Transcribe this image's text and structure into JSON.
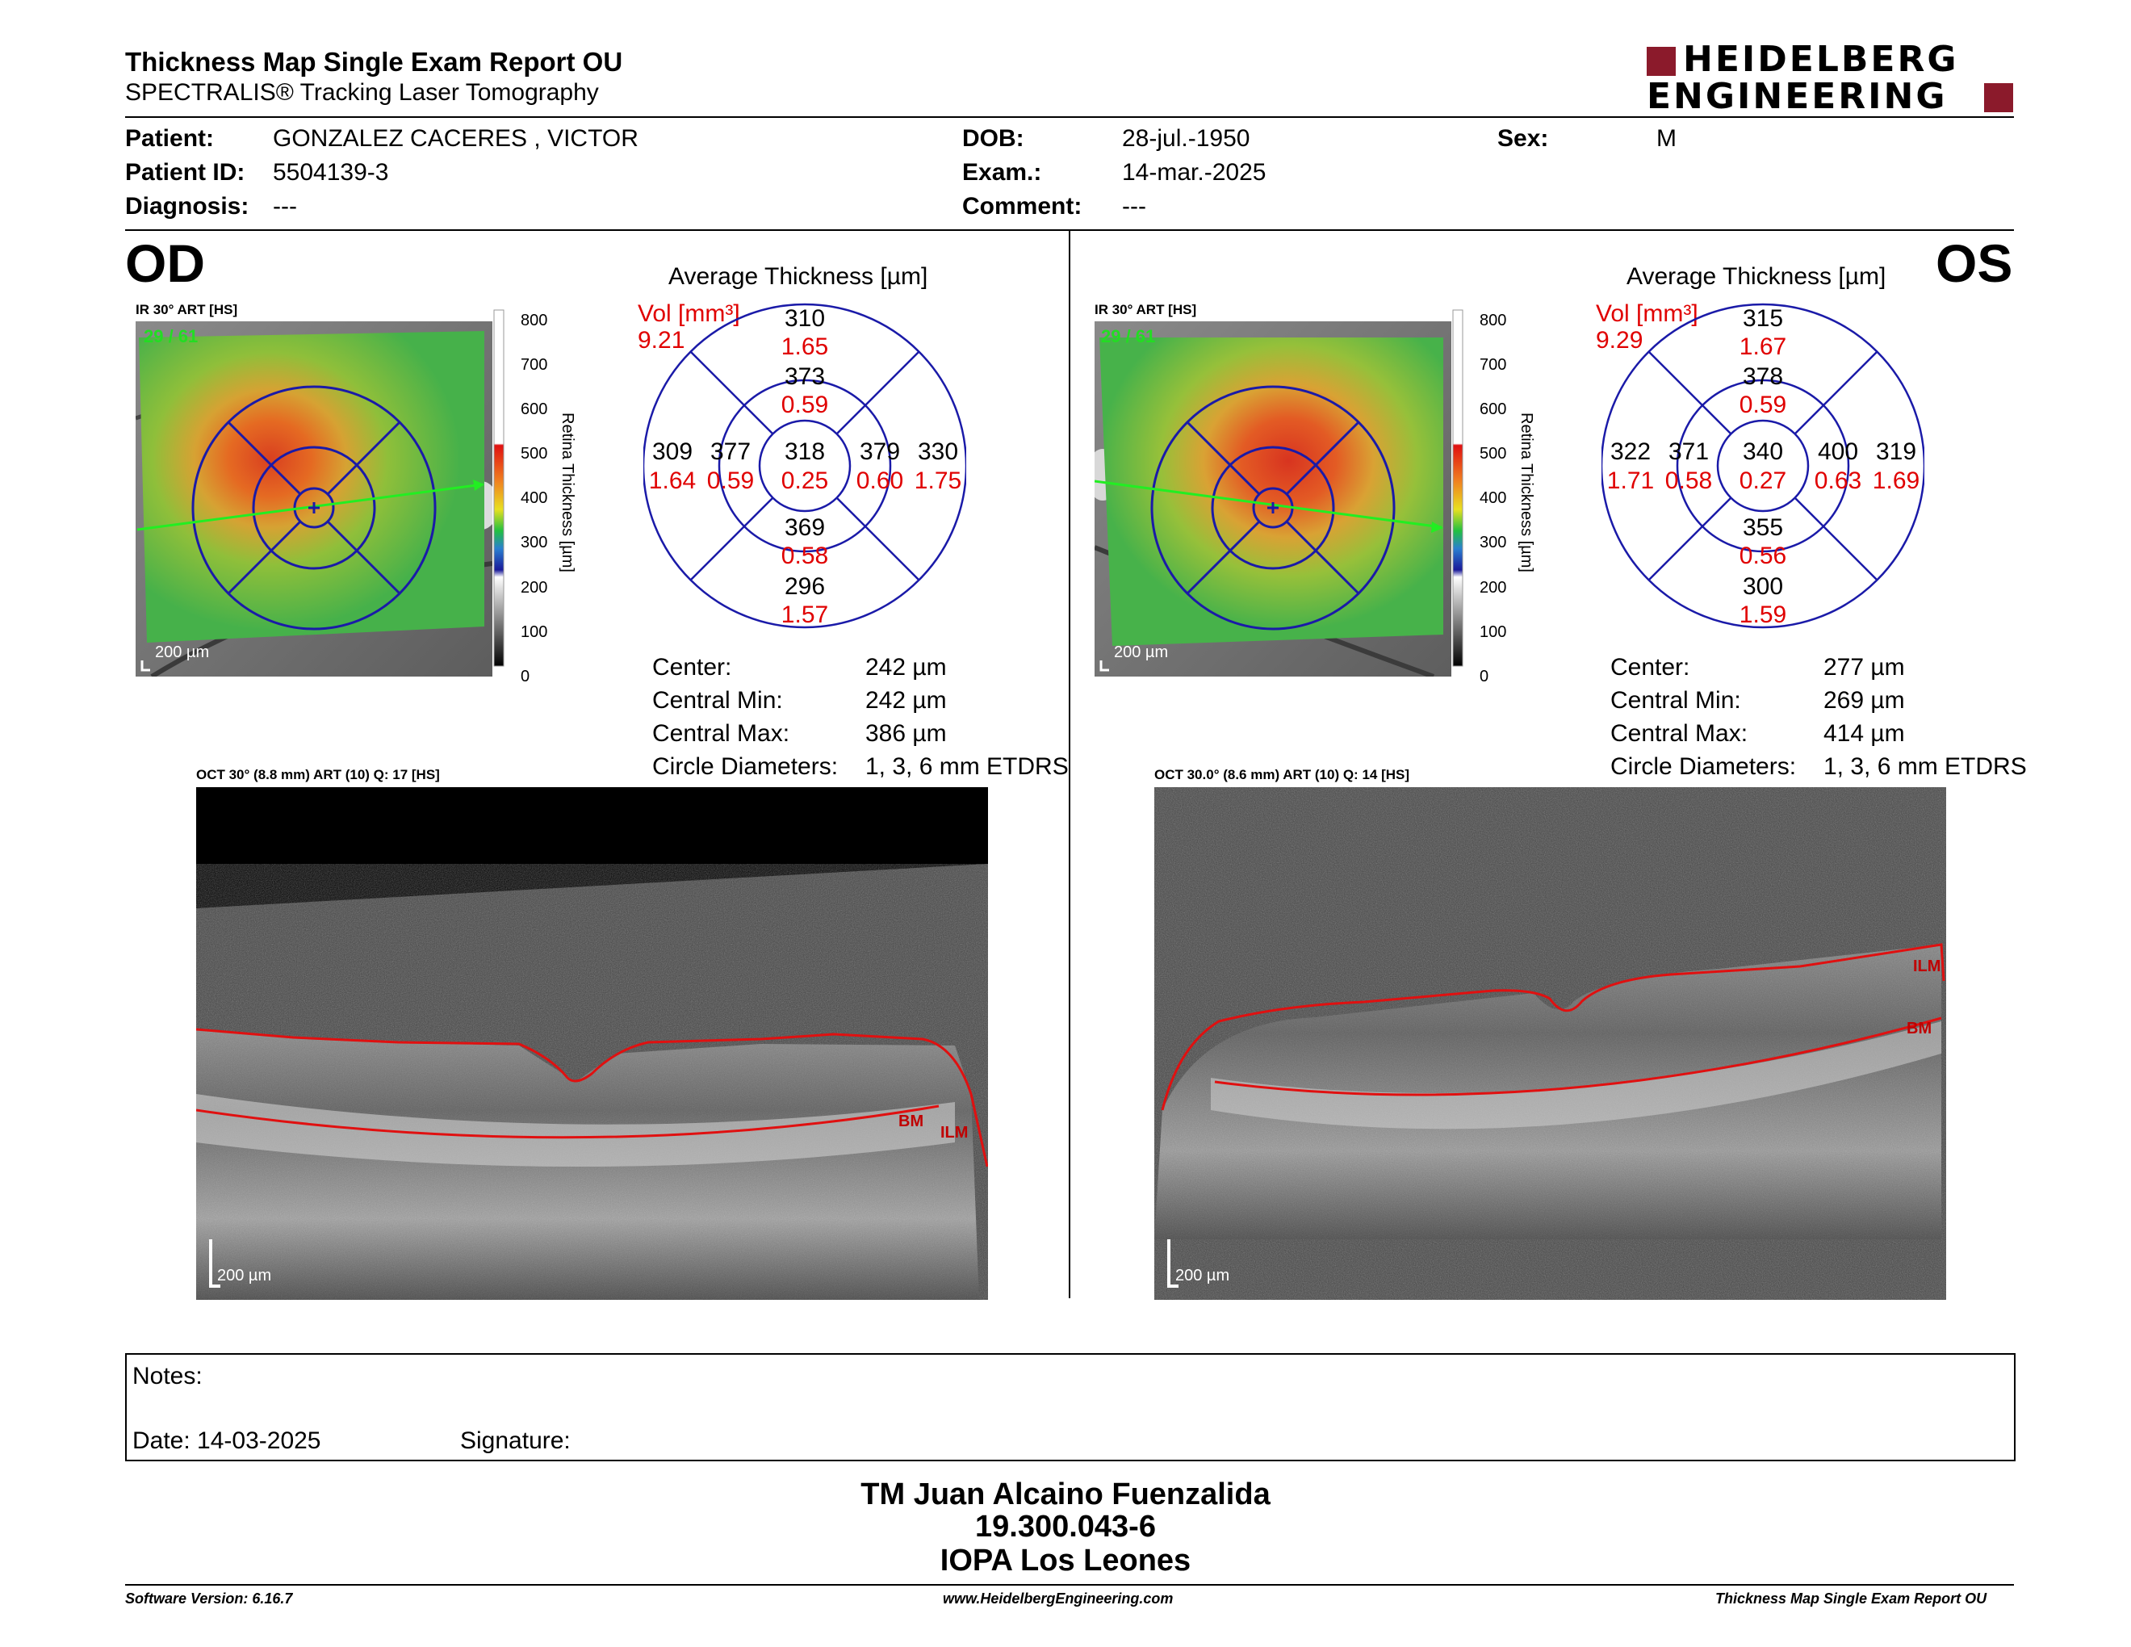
{
  "header": {
    "title": "Thickness Map Single Exam Report OU",
    "subtitle": "SPECTRALIS® Tracking Laser Tomography",
    "logo_line1": "HEIDELBERG",
    "logo_line2": "ENGINEERING"
  },
  "patient": {
    "patient_label": "Patient:",
    "patient_value": "GONZALEZ CACERES , VICTOR",
    "id_label": "Patient ID:",
    "id_value": "5504139-3",
    "diagnosis_label": "Diagnosis:",
    "diagnosis_value": "---",
    "dob_label": "DOB:",
    "dob_value": "28-jul.-1950",
    "exam_label": "Exam.:",
    "exam_value": "14-mar.-2025",
    "comment_label": "Comment:",
    "comment_value": "---",
    "sex_label": "Sex:",
    "sex_value": "M"
  },
  "od": {
    "eye_label": "OD",
    "ir_label": "IR 30° ART [HS]",
    "frame_count": "29 / 61",
    "scale_label": "200 µm",
    "colorbar_ticks": [
      "800",
      "700",
      "600",
      "500",
      "400",
      "300",
      "200",
      "100",
      "0"
    ],
    "colorbar_title": "Retina Thickness [µm]",
    "avg_title": "Average Thickness [µm]",
    "vol_label": "Vol [mm³]",
    "vol_value": "9.21",
    "sectors": {
      "outer_sup": {
        "t": "310",
        "v": "1.65"
      },
      "inner_sup": {
        "t": "373",
        "v": "0.59"
      },
      "outer_temp": {
        "t": "309",
        "v": "1.64"
      },
      "inner_temp": {
        "t": "377",
        "v": "0.59"
      },
      "center": {
        "t": "318",
        "v": "0.25"
      },
      "inner_nas": {
        "t": "379",
        "v": "0.60"
      },
      "outer_nas": {
        "t": "330",
        "v": "1.75"
      },
      "inner_inf": {
        "t": "369",
        "v": "0.58"
      },
      "outer_inf": {
        "t": "296",
        "v": "1.57"
      }
    },
    "stats": {
      "center_label": "Center:",
      "center_value": "242 µm",
      "min_label": "Central Min:",
      "min_value": "242 µm",
      "max_label": "Central Max:",
      "max_value": "386 µm",
      "diam_label": "Circle Diameters:",
      "diam_value": "1, 3, 6 mm ETDRS"
    },
    "oct_label": "OCT 30° (8.8 mm) ART (10) Q: 17 [HS]",
    "oct_scale": "200 µm",
    "bm_label": "BM",
    "ilm_label": "ILM"
  },
  "os": {
    "eye_label": "OS",
    "ir_label": "IR 30° ART [HS]",
    "frame_count": "29 / 61",
    "scale_label": "200 µm",
    "colorbar_ticks": [
      "800",
      "700",
      "600",
      "500",
      "400",
      "300",
      "200",
      "100",
      "0"
    ],
    "colorbar_title": "Retina Thickness [µm]",
    "avg_title": "Average Thickness [µm]",
    "vol_label": "Vol [mm³]",
    "vol_value": "9.29",
    "sectors": {
      "outer_sup": {
        "t": "315",
        "v": "1.67"
      },
      "inner_sup": {
        "t": "378",
        "v": "0.59"
      },
      "outer_temp": {
        "t": "322",
        "v": "1.71"
      },
      "inner_temp": {
        "t": "371",
        "v": "0.58"
      },
      "center": {
        "t": "340",
        "v": "0.27"
      },
      "inner_nas": {
        "t": "400",
        "v": "0.63"
      },
      "outer_nas": {
        "t": "319",
        "v": "1.69"
      },
      "inner_inf": {
        "t": "355",
        "v": "0.56"
      },
      "outer_inf": {
        "t": "300",
        "v": "1.59"
      }
    },
    "stats": {
      "center_label": "Center:",
      "center_value": "277 µm",
      "min_label": "Central Min:",
      "min_value": "269 µm",
      "max_label": "Central Max:",
      "max_value": "414 µm",
      "diam_label": "Circle Diameters:",
      "diam_value": "1, 3, 6 mm ETDRS"
    },
    "oct_label": "OCT 30.0° (8.6 mm) ART (10) Q: 14 [HS]",
    "oct_scale": "200 µm",
    "bm_label": "BM",
    "ilm_label": "ILM"
  },
  "notes": {
    "notes_label": "Notes:",
    "date_label": "Date: 14-03-2025",
    "signature_label": "Signature:"
  },
  "signer": {
    "name": "TM Juan Alcaino Fuenzalida",
    "rut": "19.300.043-6",
    "institution": "IOPA Los Leones"
  },
  "footer": {
    "software": "Software Version: 6.16.7",
    "website": "www.HeidelbergEngineering.com",
    "report": "Thickness Map Single Exam Report OU"
  },
  "colors": {
    "grid_blue": "#1a1aa8",
    "value_red": "#e00000",
    "seg_red": "#e01010",
    "logo_red": "#8b1a2b",
    "frame_green": "#22dd22"
  }
}
